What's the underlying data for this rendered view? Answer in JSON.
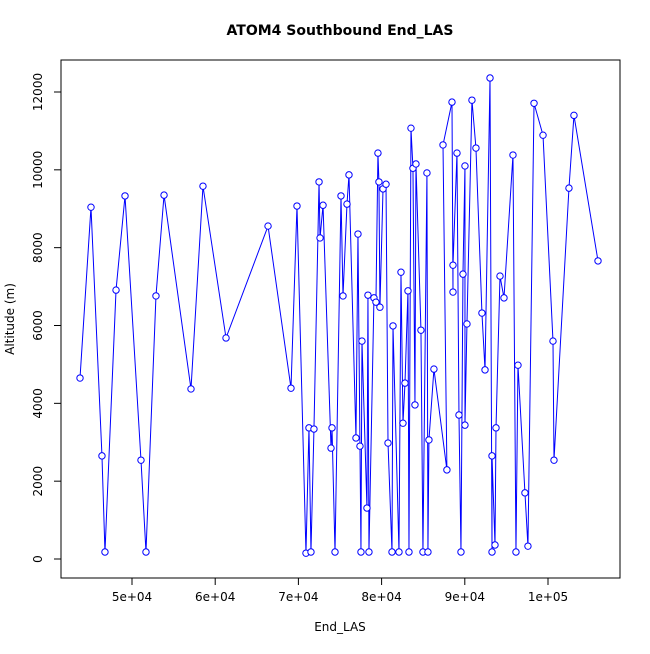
{
  "chart_data": {
    "type": "line",
    "title": "ATOM4 Southbound End_LAS",
    "xlabel": "End_LAS",
    "ylabel": "Altitude (m)",
    "x": [
      43750,
      45070,
      46390,
      46750,
      48080,
      49160,
      51080,
      51680,
      52880,
      53850,
      57090,
      58530,
      61300,
      66350,
      69110,
      69830,
      70910,
      71270,
      71510,
      71870,
      72480,
      72600,
      72960,
      73920,
      74040,
      74400,
      75120,
      75360,
      75840,
      76080,
      76920,
      77160,
      77400,
      77520,
      77640,
      78240,
      78360,
      78480,
      79080,
      79320,
      79560,
      79680,
      79800,
      80170,
      80530,
      80770,
      81250,
      81370,
      82090,
      82330,
      82570,
      82810,
      83170,
      83290,
      83530,
      83770,
      84010,
      84130,
      84730,
      84970,
      85450,
      85570,
      85690,
      86290,
      87850,
      87380,
      88460,
      88580,
      88580,
      89060,
      89300,
      89540,
      89780,
      90020,
      90020,
      90260,
      90860,
      91340,
      92060,
      92430,
      93030,
      93270,
      93270,
      93630,
      93750,
      94230,
      94710,
      95790,
      96150,
      96390,
      97230,
      97590,
      98320,
      99400,
      100600,
      100720,
      102520,
      103120,
      106010
    ],
    "series": [
      {
        "name": "Altitude",
        "color": "#0000ff",
        "values": [
          4650,
          9040,
          2650,
          180,
          6910,
          9330,
          2540,
          180,
          6760,
          9350,
          4370,
          9580,
          5680,
          8555,
          4390,
          9070,
          150,
          3370,
          180,
          3340,
          9690,
          8250,
          9090,
          2850,
          3370,
          180,
          9330,
          6760,
          9120,
          9870,
          3110,
          8350,
          2900,
          180,
          5600,
          1310,
          6780,
          180,
          6710,
          6600,
          10430,
          9690,
          6470,
          9510,
          9630,
          2980,
          180,
          5990,
          180,
          7370,
          3490,
          4520,
          6890,
          180,
          11070,
          10040,
          3960,
          10150,
          5880,
          180,
          9920,
          180,
          3060,
          4880,
          2290,
          10640,
          11740,
          6860,
          7550,
          10430,
          3700,
          180,
          7320,
          10100,
          3440,
          6040,
          11790,
          10560,
          6320,
          4860,
          12360,
          180,
          2650,
          360,
          3370,
          7270,
          6710,
          10380,
          180,
          4980,
          1700,
          330,
          11710,
          10890,
          5600,
          2540,
          9530,
          11400,
          7660
        ]
      }
    ],
    "xlim": [
      41466,
      108654
    ],
    "ylim": [
      -488,
      12822
    ],
    "xticks": [
      {
        "value": 50000,
        "label": "5e+04"
      },
      {
        "value": 60000,
        "label": "6e+04"
      },
      {
        "value": 70000,
        "label": "7e+04"
      },
      {
        "value": 80000,
        "label": "8e+04"
      },
      {
        "value": 90000,
        "label": "9e+04"
      },
      {
        "value": 100000,
        "label": "1e+05"
      }
    ],
    "yticks": [
      0,
      2000,
      4000,
      6000,
      8000,
      10000,
      12000
    ]
  }
}
